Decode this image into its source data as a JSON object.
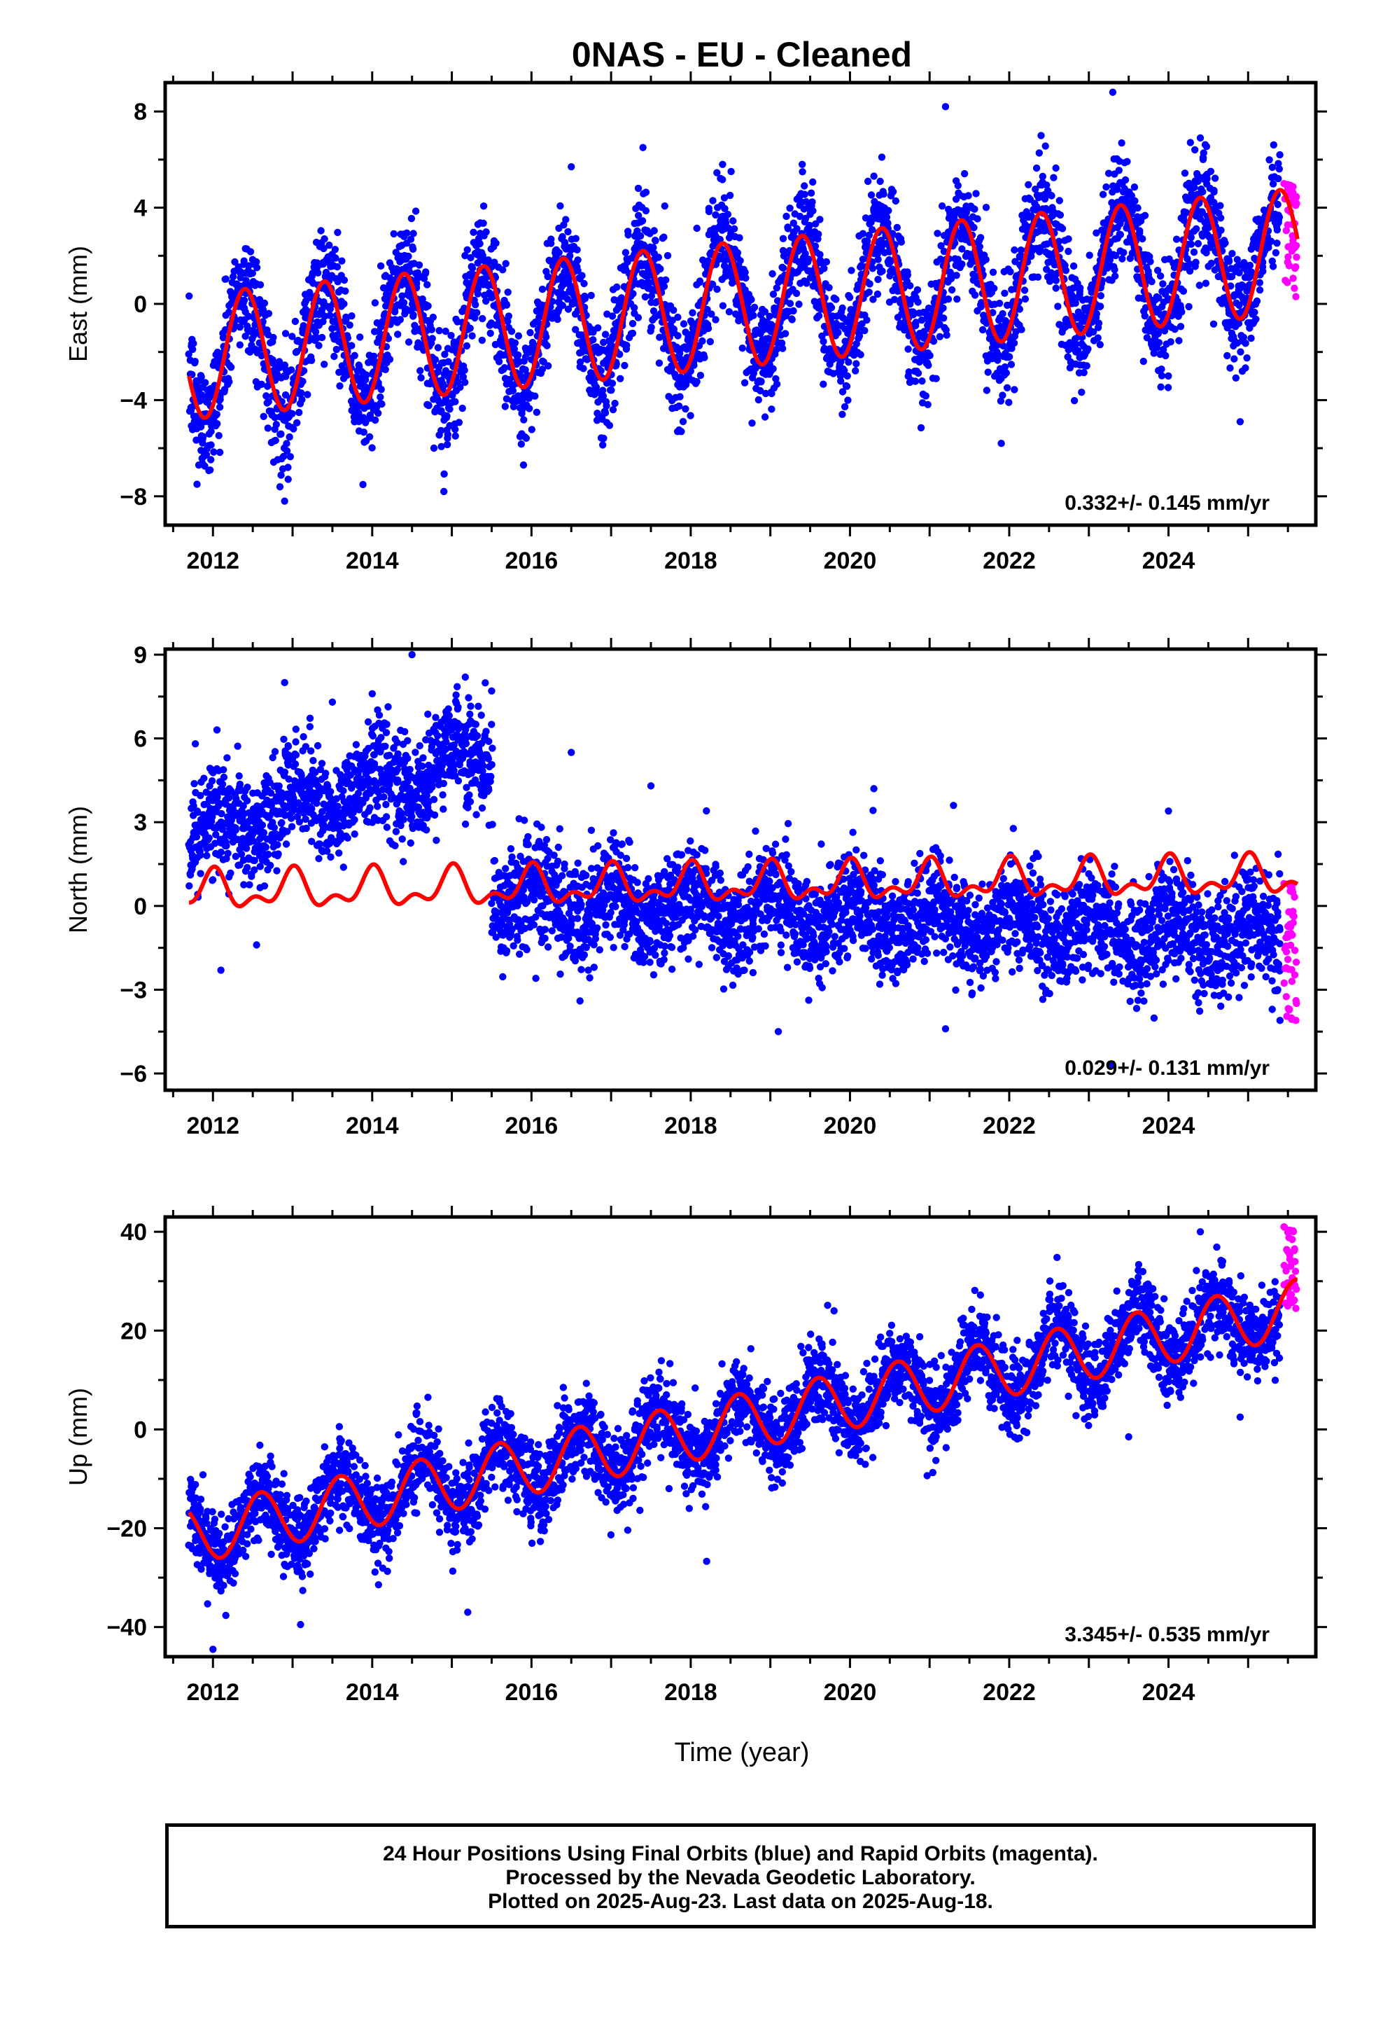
{
  "chart_title": "0NAS  - EU - Cleaned",
  "xlabel": "Time (year)",
  "footer": {
    "line1": "24 Hour Positions Using Final Orbits (blue) and Rapid Orbits (magenta).",
    "line2": "Processed by the Nevada Geodetic Laboratory.",
    "line3": "Plotted on 2025-Aug-23. Last data on 2025-Aug-18."
  },
  "colors": {
    "final_orbits": "#0000ff",
    "rapid_orbits": "#ff00ff",
    "model_fit": "#ff0000",
    "frame": "#000000"
  },
  "chart_data": [
    {
      "type": "scatter",
      "panel": "east",
      "ylabel": "East (mm)",
      "rate_label": "0.332+/- 0.145 mm/yr",
      "xlim": [
        2011.4,
        2025.85
      ],
      "ylim": [
        -9.2,
        9.2
      ],
      "xticks": [
        2012,
        2014,
        2016,
        2018,
        2020,
        2022,
        2024
      ],
      "yticks": [
        -8,
        -4,
        0,
        4,
        8
      ],
      "data_span": [
        2011.7,
        2025.4
      ],
      "rapid_span": [
        2025.4,
        2025.63
      ],
      "model": {
        "trend": [
          [
            2011.7,
            -2.2
          ],
          [
            2025.6,
            2.2
          ]
        ],
        "annual_amplitude": 2.6,
        "peak_phase_year": 0.4
      },
      "scatter_sd": 1.2,
      "series": [
        {
          "name": "final_orbits",
          "samples": [
            [
              2011.8,
              -7.5
            ],
            [
              2012.4,
              0.8
            ],
            [
              2012.9,
              -8.2
            ],
            [
              2013.4,
              2.7
            ],
            [
              2014.4,
              2.8
            ],
            [
              2014.9,
              -7.8
            ],
            [
              2015.9,
              -6.7
            ],
            [
              2016.5,
              5.7
            ],
            [
              2017.4,
              6.5
            ],
            [
              2018.4,
              5.8
            ],
            [
              2019.4,
              5.8
            ],
            [
              2020.4,
              6.1
            ],
            [
              2021.2,
              8.2
            ],
            [
              2021.9,
              -5.8
            ],
            [
              2022.4,
              7.0
            ],
            [
              2023.3,
              8.8
            ],
            [
              2024.4,
              6.9
            ],
            [
              2024.9,
              -4.9
            ]
          ]
        },
        {
          "name": "rapid_orbits",
          "samples": [
            [
              2025.45,
              5.0
            ],
            [
              2025.5,
              3.9
            ],
            [
              2025.55,
              2.2
            ],
            [
              2025.6,
              0.3
            ]
          ]
        }
      ]
    },
    {
      "type": "scatter",
      "panel": "north",
      "ylabel": "North (mm)",
      "rate_label": "0.029+/- 0.131 mm/yr",
      "xlim": [
        2011.4,
        2025.85
      ],
      "ylim": [
        -6.6,
        9.2
      ],
      "xticks": [
        2012,
        2014,
        2016,
        2018,
        2020,
        2022,
        2024
      ],
      "yticks": [
        -6,
        -3,
        0,
        3,
        6,
        9
      ],
      "data_span": [
        2011.7,
        2025.4
      ],
      "offset_epoch": 2015.5,
      "segments": [
        {
          "range": [
            2011.7,
            2015.5
          ],
          "trend": [
            [
              2011.7,
              2.5
            ],
            [
              2015.5,
              5.5
            ]
          ]
        },
        {
          "range": [
            2015.5,
            2025.4
          ],
          "trend": [
            [
              2015.5,
              0.3
            ],
            [
              2025.4,
              -1.2
            ]
          ]
        }
      ],
      "model": {
        "mean": 0.5,
        "trend_per_year": 0.04,
        "annual_amplitude": 0.55,
        "semiannual_amplitude": 0.35
      },
      "scatter_sd": 0.95,
      "series": [
        {
          "name": "final_orbits",
          "samples": [
            [
              2012.1,
              -2.3
            ],
            [
              2012.9,
              8.0
            ],
            [
              2013.5,
              7.3
            ],
            [
              2014.0,
              7.6
            ],
            [
              2014.5,
              9.0
            ],
            [
              2015.5,
              7.7
            ],
            [
              2016.5,
              5.5
            ],
            [
              2017.5,
              4.3
            ],
            [
              2019.1,
              -4.5
            ],
            [
              2020.3,
              4.2
            ],
            [
              2021.3,
              3.6
            ],
            [
              2021.2,
              -4.4
            ],
            [
              2023.3,
              -5.7
            ],
            [
              2024.0,
              3.4
            ],
            [
              2025.4,
              -4.1
            ]
          ]
        },
        {
          "name": "rapid_orbits",
          "samples": [
            [
              2025.45,
              0.8
            ],
            [
              2025.5,
              -1.0
            ],
            [
              2025.55,
              -2.7
            ],
            [
              2025.6,
              -4.1
            ]
          ]
        }
      ]
    },
    {
      "type": "scatter",
      "panel": "up",
      "ylabel": "Up (mm)",
      "rate_label": "3.345+/- 0.535 mm/yr",
      "xlim": [
        2011.4,
        2025.85
      ],
      "ylim": [
        -46,
        43
      ],
      "xticks": [
        2012,
        2014,
        2016,
        2018,
        2020,
        2022,
        2024
      ],
      "yticks": [
        -40,
        -20,
        0,
        20,
        40
      ],
      "data_span": [
        2011.7,
        2025.4
      ],
      "rapid_span": [
        2025.4,
        2025.63
      ],
      "model": {
        "trend": [
          [
            2011.7,
            -21.5
          ],
          [
            2025.6,
            24.5
          ]
        ],
        "annual_amplitude": 5.8,
        "peak_phase_year": 0.6
      },
      "scatter_sd": 4.2,
      "series": [
        {
          "name": "final_orbits",
          "samples": [
            [
              2012.0,
              -44.5
            ],
            [
              2013.1,
              -39.5
            ],
            [
              2014.7,
              6.5
            ],
            [
              2015.2,
              -37.0
            ],
            [
              2016.4,
              8.5
            ],
            [
              2018.2,
              -26.7
            ],
            [
              2019.8,
              24.0
            ],
            [
              2022.6,
              34.8
            ],
            [
              2023.5,
              -1.5
            ],
            [
              2024.4,
              40.0
            ],
            [
              2024.9,
              2.5
            ]
          ]
        },
        {
          "name": "rapid_orbits",
          "samples": [
            [
              2025.45,
              41.0
            ],
            [
              2025.5,
              36.0
            ],
            [
              2025.55,
              30.0
            ],
            [
              2025.6,
              24.5
            ]
          ]
        }
      ]
    }
  ]
}
